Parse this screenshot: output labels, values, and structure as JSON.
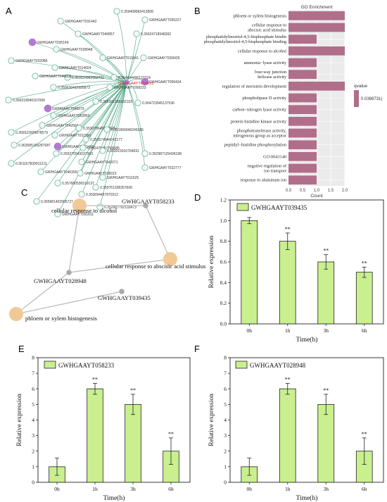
{
  "panels": {
    "A": "A",
    "B": "B",
    "C": "C",
    "D": "D",
    "E": "E",
    "F": "F"
  },
  "network_a": {
    "center": "GWHGAAYT014813",
    "nodes": [
      {
        "label": "GWHGAAYT031442",
        "kind": "gene"
      },
      {
        "label": "0.359408683412808",
        "kind": "edge"
      },
      {
        "label": "GWHGAAYT055227",
        "kind": "gene"
      },
      {
        "label": "GWHGAAYT035149",
        "kind": "hub"
      },
      {
        "label": "GWHGAAYT040857",
        "kind": "gene"
      },
      {
        "label": "GWHGAAYT028948",
        "kind": "gene"
      },
      {
        "label": "0.35624718948392",
        "kind": "edge"
      },
      {
        "label": "GWHGAAYT032086",
        "kind": "gene"
      },
      {
        "label": "GWHGAAYT011641",
        "kind": "gene"
      },
      {
        "label": "GWHGAAYT009435",
        "kind": "gene"
      },
      {
        "label": "GWHGAAYT014604",
        "kind": "gene"
      },
      {
        "label": "0.361634962552751",
        "kind": "edge"
      },
      {
        "label": "0.364844490127224",
        "kind": "edge"
      },
      {
        "label": "GWHGAAYT046806",
        "kind": "gene"
      },
      {
        "label": "0.350636492925873",
        "kind": "edge"
      },
      {
        "label": "GWHGAAYT058233",
        "kind": "gene"
      },
      {
        "label": "GWHGAAYT056434",
        "kind": "hub"
      },
      {
        "label": "0.366218940167006",
        "kind": "edge"
      },
      {
        "label": "GWHGAAYT048979",
        "kind": "hub"
      },
      {
        "label": "GWHGAAYT052850",
        "kind": "gene"
      },
      {
        "label": "0.366391336902163",
        "kind": "edge"
      },
      {
        "label": "GWHGAAYT042565",
        "kind": "gene"
      },
      {
        "label": "0.364723945137536",
        "kind": "edge"
      },
      {
        "label": "0.365522609878579",
        "kind": "edge"
      },
      {
        "label": "GWHGAAYT011560",
        "kind": "gene"
      },
      {
        "label": "0.353078645827925",
        "kind": "edge"
      },
      {
        "label": "0.351966949245185",
        "kind": "edge"
      },
      {
        "label": "GWHGAAYT051410",
        "kind": "hub"
      },
      {
        "label": "0.363585169287687",
        "kind": "edge"
      },
      {
        "label": "0.353574944742177",
        "kind": "edge"
      },
      {
        "label": "0.355270043037363",
        "kind": "edge"
      },
      {
        "label": "0.352475497769385",
        "kind": "edge"
      },
      {
        "label": "0.353015910764691",
        "kind": "edge"
      },
      {
        "label": "0.352987129436198",
        "kind": "edge"
      },
      {
        "label": "0.361167839911211",
        "kind": "edge"
      },
      {
        "label": "GWHGAAYT042071",
        "kind": "gene"
      },
      {
        "label": "GWHGAAYT022777",
        "kind": "gene"
      },
      {
        "label": "GWHGAAYT046390",
        "kind": "gene"
      },
      {
        "label": "GWHGAAYT038315",
        "kind": "gene"
      },
      {
        "label": "GWHGAAYT011525",
        "kind": "gene"
      },
      {
        "label": "0.357680536519137",
        "kind": "edge"
      },
      {
        "label": "0.359761208267606",
        "kind": "edge"
      },
      {
        "label": "0.350094457870312",
        "kind": "edge"
      },
      {
        "label": "0.365981403905727",
        "kind": "edge"
      },
      {
        "label": "0.352987792193473",
        "kind": "edge"
      },
      {
        "label": "GWHGAAYT091611",
        "kind": "gene"
      }
    ]
  },
  "network_c": {
    "terms": [
      "cellular response to alcohol",
      "cellular response to abscisic acid stimulus",
      "phloem or xylem histogenesis"
    ],
    "genes": [
      "GWHGAAYT058233",
      "GWHGAAYT028948",
      "GWHGAAYT039435"
    ]
  },
  "chart_data": [
    {
      "type": "bar",
      "title": "GO Enrichment",
      "orientation": "horizontal",
      "categories": [
        "phloem or xylem histogenesis",
        "cellular response to abscisic acid stimulus",
        "phosphatidylinositol-4,5-bisphosphate binding",
        "cellular response to alcohol",
        "ammonia−lyase activity",
        "four-way junction helicase activity",
        "regulation of meristem development",
        "phospholipase D activity",
        "carbon−nitrogen lyase activity",
        "protein histidine kinase activity",
        "phosphotransferase activity, nitrogenous group as acceptor",
        "peptidyl−histidine phosphorylation",
        "GO:0043140",
        "negative regulation of ion transport",
        "response to aluminum ion"
      ],
      "values": [
        2,
        2,
        1,
        2,
        1,
        1,
        2,
        1,
        1,
        1,
        1,
        1,
        1,
        1,
        1
      ],
      "xlabel": "Count",
      "xlim": [
        0,
        2
      ],
      "xticks": [
        "0.0",
        "0.5",
        "1.0",
        "1.5",
        "2.0"
      ],
      "legend": {
        "title": "qvalue",
        "value": "0.0388731( ",
        "position": "right"
      },
      "bar_color": "#b06e8a"
    },
    {
      "type": "bar",
      "categories": [
        "0h",
        "1h",
        "3h",
        "6h"
      ],
      "series": [
        {
          "name": "GWHGAAYT039435",
          "values": [
            1.0,
            0.8,
            0.6,
            0.5
          ],
          "errors": [
            0.03,
            0.08,
            0.07,
            0.05
          ],
          "marks": [
            "",
            "**",
            "**",
            "**"
          ]
        }
      ],
      "xlabel": "Time(h)",
      "ylabel": "Relative expression",
      "ylim": [
        0.0,
        1.2
      ],
      "yticks": [
        "0.0",
        "0.2",
        "0.4",
        "0.6",
        "0.8",
        "1.0",
        "1.2"
      ],
      "bar_color": "#c9ef8f"
    },
    {
      "type": "bar",
      "categories": [
        "0h",
        "1h",
        "3h",
        "6h"
      ],
      "series": [
        {
          "name": "GWHGAAYT058233",
          "values": [
            1,
            6,
            5,
            2
          ],
          "errors": [
            0.55,
            0.35,
            0.65,
            0.85
          ],
          "marks": [
            "",
            "**",
            "**",
            "**"
          ]
        }
      ],
      "xlabel": "Time(h)",
      "ylabel": "Relative expression",
      "ylim": [
        0,
        8
      ],
      "yticks": [
        "0",
        "1",
        "2",
        "3",
        "4",
        "5",
        "6",
        "7",
        "8"
      ],
      "bar_color": "#c9ef8f"
    },
    {
      "type": "bar",
      "categories": [
        "0h",
        "1h",
        "3h",
        "6h"
      ],
      "series": [
        {
          "name": "GWHGAAYT028948",
          "values": [
            1,
            6,
            5,
            2
          ],
          "errors": [
            0.55,
            0.35,
            0.65,
            0.85
          ],
          "marks": [
            "",
            "**",
            "**",
            "**"
          ]
        }
      ],
      "xlabel": "Time(h)",
      "ylabel": "Relative expression",
      "ylim": [
        0,
        8
      ],
      "yticks": [
        "0",
        "1",
        "2",
        "3",
        "4",
        "5",
        "6",
        "7",
        "8"
      ],
      "bar_color": "#c9ef8f"
    }
  ]
}
